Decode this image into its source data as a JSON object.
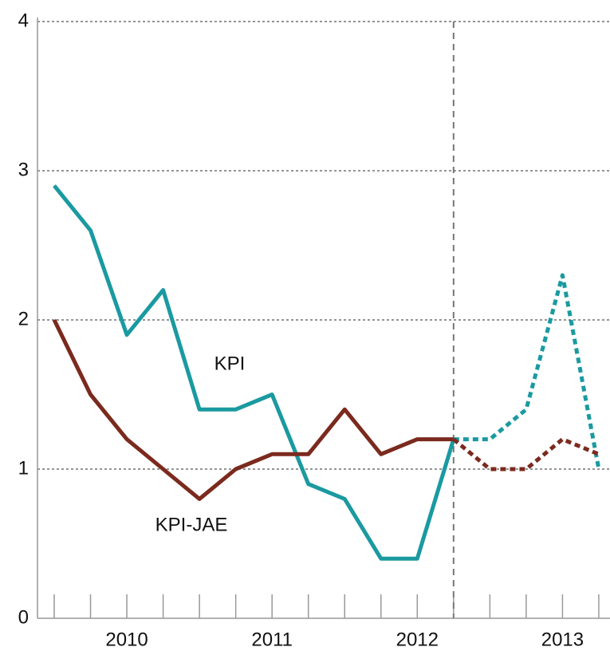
{
  "chart_data": {
    "type": "line",
    "categories": [
      null,
      null,
      "2010",
      null,
      null,
      null,
      "2011",
      null,
      null,
      null,
      "2012",
      null,
      null,
      null,
      "2013",
      null
    ],
    "series": [
      {
        "name": "KPI",
        "color": "#1a9aa0",
        "values": [
          2.9,
          2.6,
          1.9,
          2.2,
          1.4,
          1.4,
          1.5,
          0.9,
          0.8,
          0.4,
          0.4,
          1.2,
          1.2,
          1.4,
          2.3,
          1.0
        ]
      },
      {
        "name": "KPI-JAE",
        "color": "#7b2a1e",
        "values": [
          2.0,
          1.5,
          1.2,
          1.0,
          0.8,
          1.0,
          1.1,
          1.1,
          1.4,
          1.1,
          1.2,
          1.2,
          1.0,
          1.0,
          1.2,
          1.1
        ]
      }
    ],
    "forecast_from": 11,
    "ylim": [
      0,
      4
    ],
    "yticks": [
      0,
      1,
      2,
      3,
      4
    ],
    "grid": true
  }
}
